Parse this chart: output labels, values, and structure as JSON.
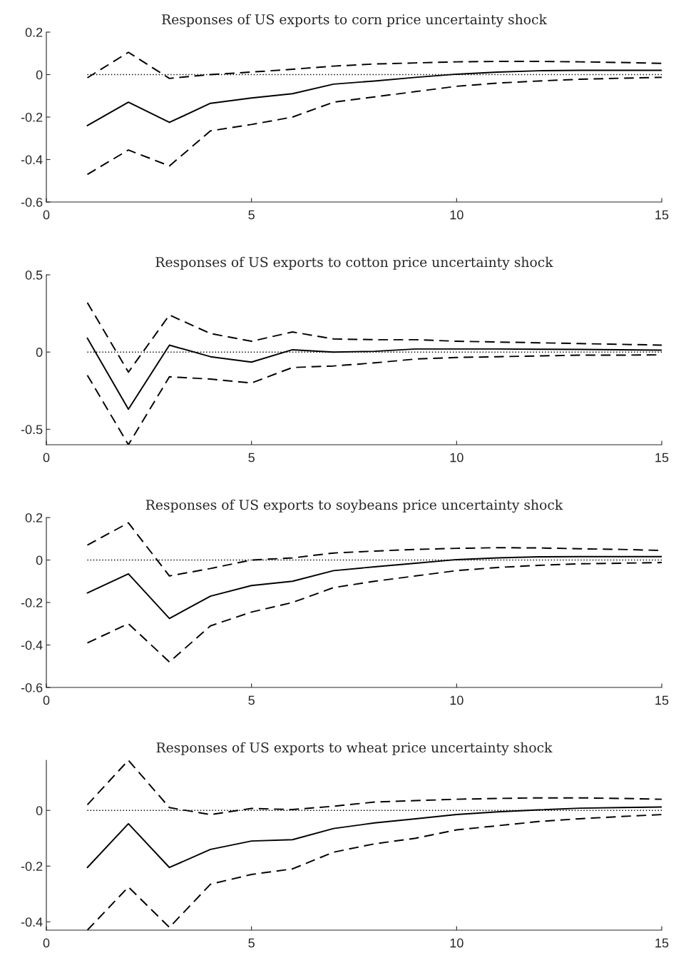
{
  "chart_data": [
    {
      "type": "line",
      "title": "Responses of US exports to corn price uncertainty shock",
      "x": [
        1,
        2,
        3,
        4,
        5,
        6,
        7,
        8,
        9,
        10,
        11,
        12,
        13,
        14,
        15
      ],
      "xlim": [
        0,
        15
      ],
      "xticks": [
        0,
        5,
        10,
        15
      ],
      "ylim": [
        -0.6,
        0.2
      ],
      "yticks": [
        -0.6,
        -0.4,
        -0.2,
        0,
        0.2
      ],
      "grid": false,
      "legend": false,
      "marker": "none",
      "series": [
        {
          "color": "#000000",
          "line_style": "solid",
          "values": [
            -0.24,
            -0.13,
            -0.225,
            -0.135,
            -0.11,
            -0.09,
            -0.045,
            -0.03,
            -0.013,
            0.002,
            0.012,
            0.018,
            0.02,
            0.02,
            0.02
          ]
        },
        {
          "color": "#000000",
          "line_style": "dashed",
          "values": [
            -0.015,
            0.105,
            -0.018,
            0.0,
            0.012,
            0.025,
            0.04,
            0.05,
            0.055,
            0.06,
            0.062,
            0.062,
            0.06,
            0.057,
            0.053
          ]
        },
        {
          "color": "#000000",
          "line_style": "dashed",
          "values": [
            -0.47,
            -0.355,
            -0.43,
            -0.265,
            -0.235,
            -0.2,
            -0.13,
            -0.105,
            -0.08,
            -0.055,
            -0.04,
            -0.03,
            -0.022,
            -0.017,
            -0.013
          ]
        }
      ],
      "ref_lines": [
        {
          "axis": "y",
          "value": 0,
          "color": "#000000",
          "line_style": "dotted"
        }
      ]
    },
    {
      "type": "line",
      "title": "Responses of US exports to cotton price uncertainty shock",
      "x": [
        1,
        2,
        3,
        4,
        5,
        6,
        7,
        8,
        9,
        10,
        11,
        12,
        13,
        14,
        15
      ],
      "xlim": [
        0,
        15
      ],
      "xticks": [
        0,
        5,
        10,
        15
      ],
      "ylim": [
        -0.6,
        0.5
      ],
      "yticks": [
        -0.5,
        0,
        0.5
      ],
      "grid": false,
      "legend": false,
      "marker": "none",
      "series": [
        {
          "color": "#000000",
          "line_style": "solid",
          "values": [
            0.09,
            -0.37,
            0.045,
            -0.03,
            -0.065,
            0.015,
            0.0,
            0.005,
            0.02,
            0.02,
            0.02,
            0.018,
            0.017,
            0.015,
            0.012
          ]
        },
        {
          "color": "#000000",
          "line_style": "dashed",
          "values": [
            0.32,
            -0.13,
            0.24,
            0.12,
            0.07,
            0.13,
            0.085,
            0.08,
            0.08,
            0.07,
            0.065,
            0.06,
            0.055,
            0.05,
            0.045
          ]
        },
        {
          "color": "#000000",
          "line_style": "dashed",
          "values": [
            -0.15,
            -0.6,
            -0.16,
            -0.175,
            -0.2,
            -0.1,
            -0.09,
            -0.07,
            -0.045,
            -0.035,
            -0.03,
            -0.025,
            -0.02,
            -0.02,
            -0.018
          ]
        }
      ],
      "ref_lines": [
        {
          "axis": "y",
          "value": 0,
          "color": "#000000",
          "line_style": "dotted"
        }
      ]
    },
    {
      "type": "line",
      "title": "Responses of US exports to soybeans price uncertainty shock",
      "x": [
        1,
        2,
        3,
        4,
        5,
        6,
        7,
        8,
        9,
        10,
        11,
        12,
        13,
        14,
        15
      ],
      "xlim": [
        0,
        15
      ],
      "xticks": [
        0,
        5,
        10,
        15
      ],
      "ylim": [
        -0.6,
        0.2
      ],
      "yticks": [
        -0.6,
        -0.4,
        -0.2,
        0,
        0.2
      ],
      "grid": false,
      "legend": false,
      "marker": "none",
      "series": [
        {
          "color": "#000000",
          "line_style": "solid",
          "values": [
            -0.155,
            -0.065,
            -0.275,
            -0.17,
            -0.12,
            -0.1,
            -0.05,
            -0.032,
            -0.015,
            0.002,
            0.01,
            0.015,
            0.016,
            0.016,
            0.016
          ]
        },
        {
          "color": "#000000",
          "line_style": "dashed",
          "values": [
            0.07,
            0.175,
            -0.075,
            -0.04,
            0.0,
            0.01,
            0.033,
            0.042,
            0.05,
            0.055,
            0.058,
            0.057,
            0.053,
            0.05,
            0.045
          ]
        },
        {
          "color": "#000000",
          "line_style": "dashed",
          "values": [
            -0.39,
            -0.3,
            -0.48,
            -0.31,
            -0.245,
            -0.2,
            -0.13,
            -0.1,
            -0.075,
            -0.05,
            -0.035,
            -0.025,
            -0.018,
            -0.015,
            -0.012
          ]
        }
      ],
      "ref_lines": [
        {
          "axis": "y",
          "value": 0,
          "color": "#000000",
          "line_style": "dotted"
        }
      ]
    },
    {
      "type": "line",
      "title": "Responses of US exports to wheat price uncertainty shock",
      "x": [
        1,
        2,
        3,
        4,
        5,
        6,
        7,
        8,
        9,
        10,
        11,
        12,
        13,
        14,
        15
      ],
      "xlim": [
        0,
        15
      ],
      "xticks": [
        0,
        5,
        10,
        15
      ],
      "ylim": [
        -0.43,
        0.18
      ],
      "yticks": [
        -0.4,
        -0.2,
        0
      ],
      "grid": false,
      "legend": false,
      "marker": "none",
      "series": [
        {
          "color": "#000000",
          "line_style": "solid",
          "values": [
            -0.205,
            -0.048,
            -0.205,
            -0.14,
            -0.11,
            -0.105,
            -0.065,
            -0.045,
            -0.03,
            -0.015,
            -0.005,
            0.002,
            0.008,
            0.01,
            0.012
          ]
        },
        {
          "color": "#000000",
          "line_style": "dashed",
          "values": [
            0.02,
            0.18,
            0.01,
            -0.015,
            0.007,
            0.003,
            0.015,
            0.03,
            0.035,
            0.04,
            0.043,
            0.045,
            0.045,
            0.043,
            0.04
          ]
        },
        {
          "color": "#000000",
          "line_style": "dashed",
          "values": [
            -0.43,
            -0.275,
            -0.42,
            -0.265,
            -0.23,
            -0.21,
            -0.15,
            -0.12,
            -0.1,
            -0.07,
            -0.055,
            -0.04,
            -0.03,
            -0.022,
            -0.015
          ]
        }
      ],
      "ref_lines": [
        {
          "axis": "y",
          "value": 0,
          "color": "#000000",
          "line_style": "dotted"
        }
      ]
    }
  ]
}
